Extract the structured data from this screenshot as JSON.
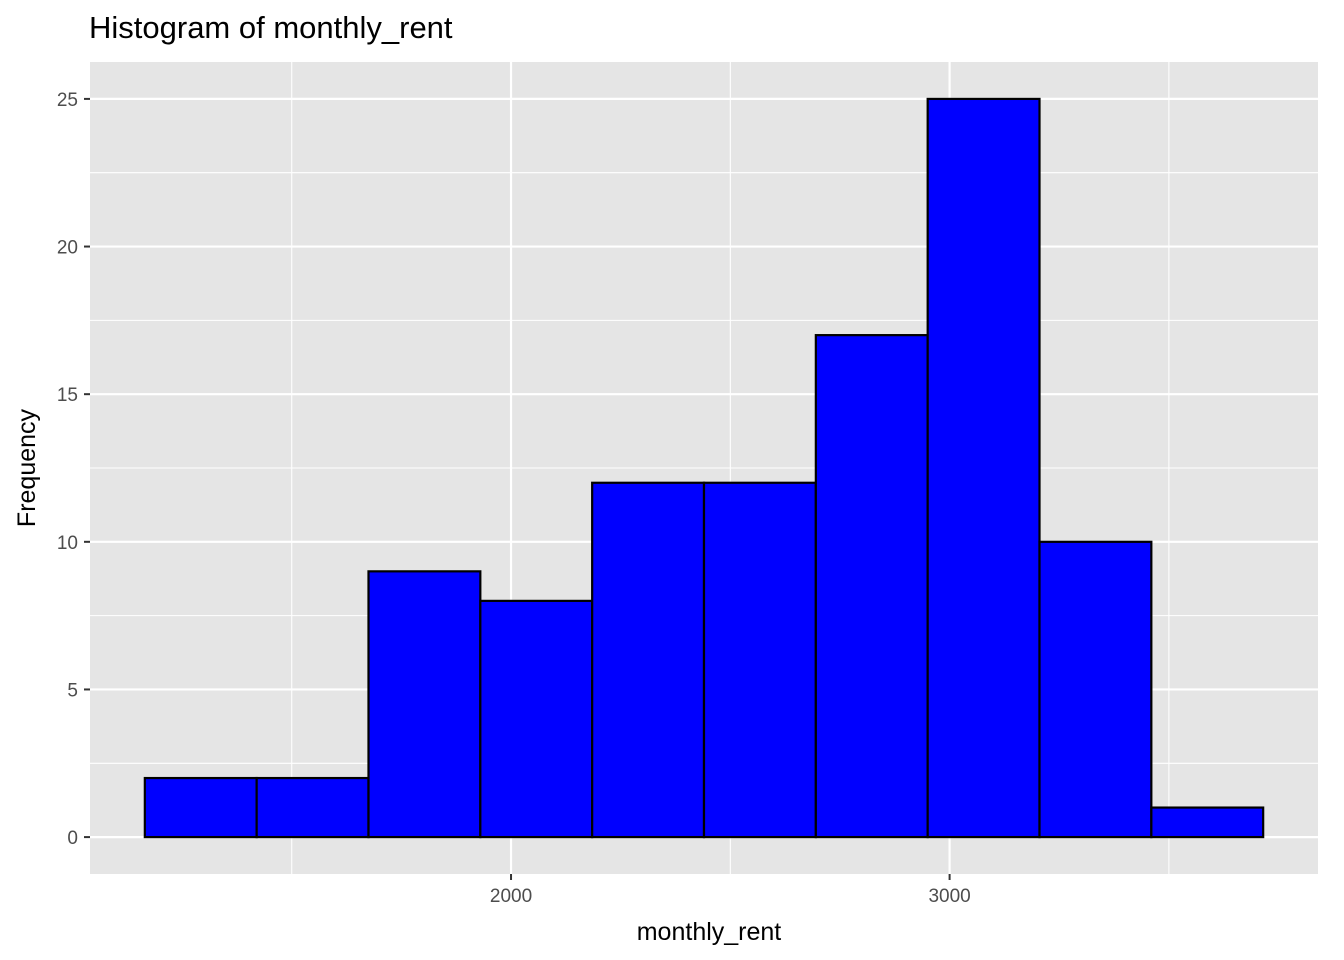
{
  "chart_data": {
    "type": "bar",
    "title": "Histogram of monthly_rent",
    "xlabel": "monthly_rent",
    "ylabel": "Frequency",
    "bin_edges": [
      1165,
      1420,
      1675,
      1930,
      2185,
      2440,
      2695,
      2950,
      3205,
      3460,
      3715
    ],
    "values": [
      2,
      2,
      9,
      8,
      12,
      12,
      17,
      25,
      10,
      1
    ],
    "x_ticks": [
      2000,
      3000
    ],
    "y_ticks": [
      0,
      5,
      10,
      15,
      20,
      25
    ],
    "xlim": [
      1040,
      3840
    ],
    "ylim": [
      -1.25,
      26.25
    ],
    "grid": true,
    "colors": {
      "bar_fill": "#0000ff",
      "bar_stroke": "#000000",
      "panel_background": "#e5e5e5",
      "grid_line": "#ffffff"
    }
  }
}
